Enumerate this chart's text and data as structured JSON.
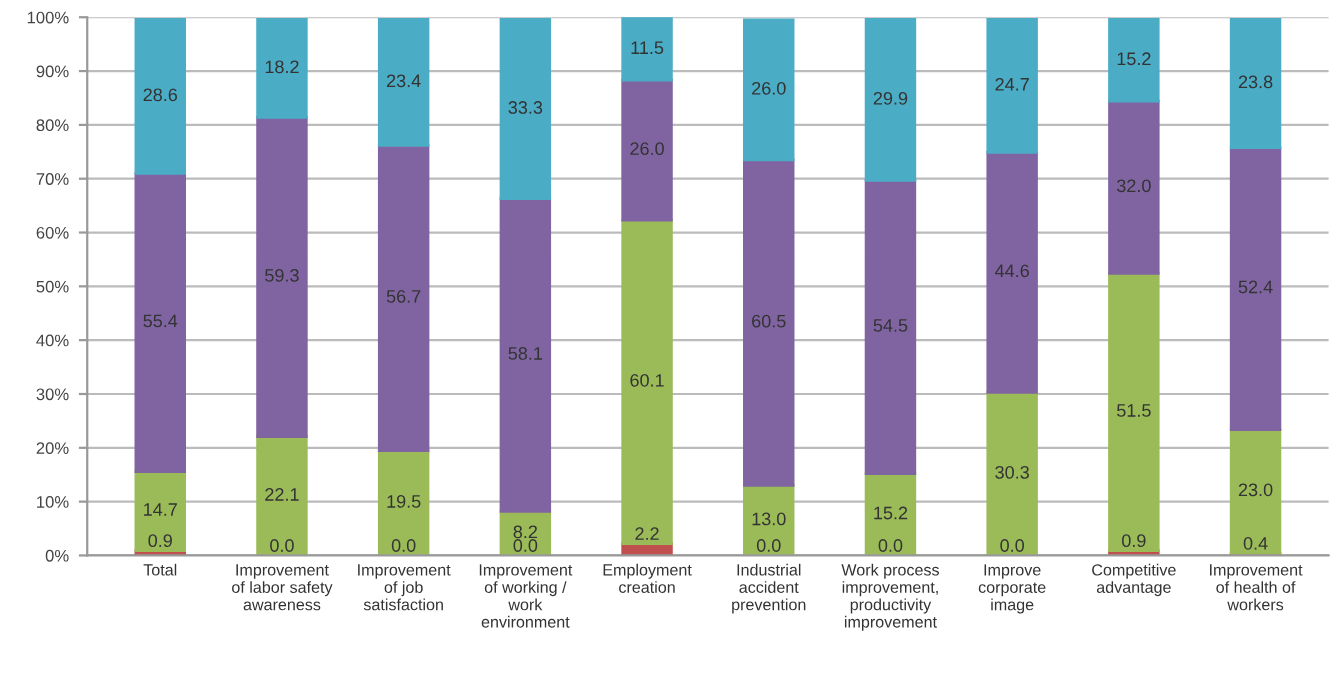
{
  "chart_data": {
    "type": "bar",
    "stacked": true,
    "categories": [
      "Total",
      "Improvement\nof labor safety\nawareness",
      "Improvement\nof job\nsatisfaction",
      "Improvement\nof working /\nwork\nenvironment",
      "Employment\ncreation",
      "Industrial\naccident\nprevention",
      "Work process\nimprovement,\nproductivity\nimprovement",
      "Improve\ncorporate\nimage",
      "Competitive\nadvantage",
      "Improvement\nof health of\nworkers"
    ],
    "series": [
      {
        "color": "#c0504d",
        "values": [
          0.9,
          0.0,
          0.0,
          0.0,
          2.2,
          0.0,
          0.0,
          0.0,
          0.9,
          0.4
        ],
        "value_labels": [
          "0.9",
          "0.0",
          "0.0",
          "0.0",
          "2.2",
          "0.0",
          "0.0",
          "0.0",
          "0.9",
          "0.4"
        ]
      },
      {
        "color": "#9bbb59",
        "values": [
          14.7,
          22.1,
          19.5,
          8.2,
          60.1,
          13.0,
          15.2,
          30.3,
          51.5,
          23.0
        ],
        "value_labels": [
          "14.7",
          "22.1",
          "19.5",
          "8.2",
          "60.1",
          "13.0",
          "15.2",
          "30.3",
          "51.5",
          "23.0"
        ]
      },
      {
        "color": "#8064a2",
        "values": [
          55.4,
          59.3,
          56.7,
          58.1,
          26.0,
          60.5,
          54.5,
          44.6,
          32.0,
          52.4
        ],
        "value_labels": [
          "55.4",
          "59.3",
          "56.7",
          "58.1",
          "26.0",
          "60.5",
          "54.5",
          "44.6",
          "32.0",
          "52.4"
        ]
      },
      {
        "color": "#4bacc6",
        "values": [
          28.6,
          18.2,
          23.4,
          33.3,
          11.5,
          26.0,
          29.9,
          24.7,
          15.2,
          23.8
        ],
        "value_labels": [
          "28.6",
          "18.2",
          "23.4",
          "33.3",
          "11.5",
          "26.0",
          "29.9",
          "24.7",
          "15.2",
          "23.8"
        ]
      }
    ],
    "ylim": [
      0,
      100
    ],
    "yticks": [
      {
        "value": 0,
        "label": "0%"
      },
      {
        "value": 10,
        "label": "10%"
      },
      {
        "value": 20,
        "label": "20%"
      },
      {
        "value": 30,
        "label": "30%"
      },
      {
        "value": 40,
        "label": "40%"
      },
      {
        "value": 50,
        "label": "50%"
      },
      {
        "value": 60,
        "label": "60%"
      },
      {
        "value": 70,
        "label": "70%"
      },
      {
        "value": 80,
        "label": "80%"
      },
      {
        "value": 90,
        "label": "90%"
      },
      {
        "value": 100,
        "label": "100%"
      }
    ],
    "grid": "y"
  }
}
